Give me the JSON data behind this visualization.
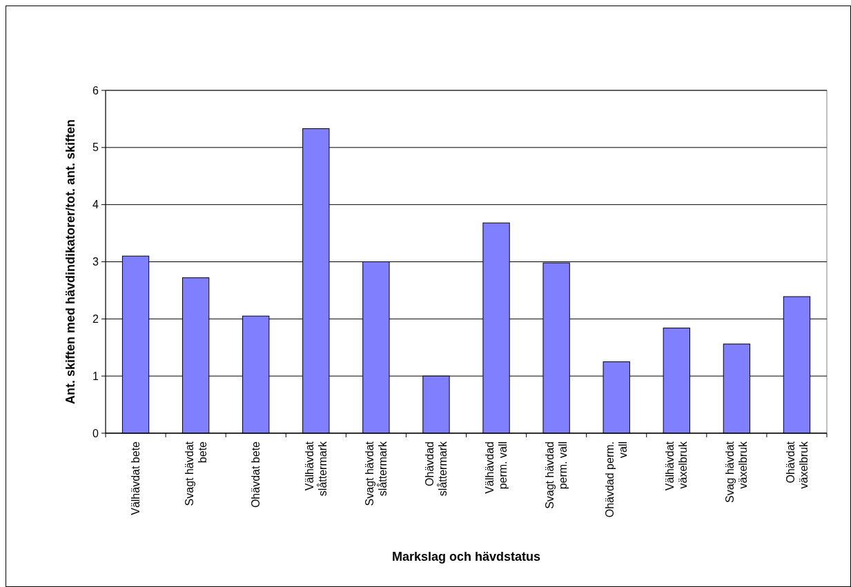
{
  "chart_data": {
    "type": "bar",
    "xlabel": "Markslag och hävdstatus",
    "ylabel": "Ant. skiften med hävdindikatorer/tot. ant. skiften",
    "categories": [
      "Välhävdat bete",
      "Svagt hävdat bete",
      "Ohävdat bete",
      "Välhävdat slåttermark",
      "Svagt hävdat slåttermark",
      "Ohävdad slåttermark",
      "Välhävdad perm. vall",
      "Svagt hävdad perm. vall",
      "Ohävdad perm. vall",
      "Välhävdat växelbruk",
      "Svag hävdat växelbruk",
      "Ohävdat växelbruk"
    ],
    "values": [
      3.1,
      2.72,
      2.05,
      5.33,
      3.0,
      1.0,
      3.68,
      2.98,
      1.25,
      1.84,
      1.56,
      2.39
    ],
    "color": "#8080ff",
    "ylim": [
      0,
      6
    ],
    "yticks": [
      0,
      1,
      2,
      3,
      4,
      5,
      6
    ],
    "grid": "y"
  }
}
